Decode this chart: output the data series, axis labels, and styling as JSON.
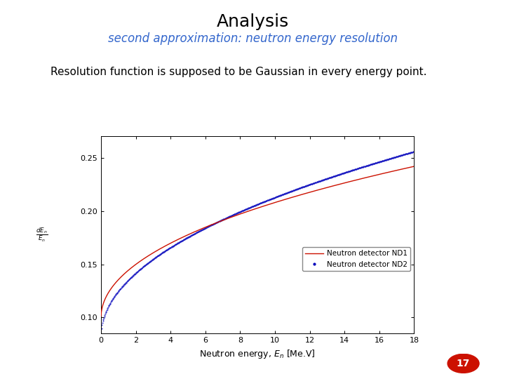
{
  "title": "Analysis",
  "subtitle": "second approximation: neutron energy resolution",
  "body_text": "Resolution function is supposed to be Gaussian in every energy point.",
  "xlabel": "Neutron energy, E_n [Me.V]",
  "ylabel_line1": "E_n",
  "ylabel_line2": "dE_n",
  "xlim": [
    0,
    18
  ],
  "ylim": [
    0.085,
    0.27
  ],
  "yticks": [
    0.1,
    0.15,
    0.2,
    0.25
  ],
  "xticks": [
    0,
    2,
    4,
    6,
    8,
    10,
    12,
    14,
    16,
    18
  ],
  "title_fontsize": 18,
  "subtitle_fontsize": 12,
  "body_fontsize": 11,
  "axis_fontsize": 8,
  "title_color": "#000000",
  "subtitle_color": "#3366cc",
  "nd1_color": "#cc1100",
  "nd2_color": "#0000bb",
  "nd1_label": "Neutron detector ND1",
  "nd2_label": "Neutron detector ND2",
  "page_number": "17",
  "background_color": "#ffffff"
}
